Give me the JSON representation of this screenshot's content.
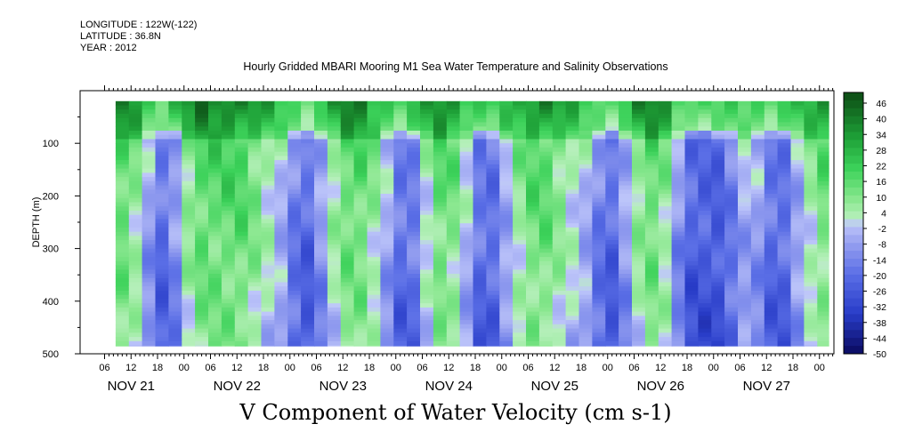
{
  "header": {
    "longitude": "LONGITUDE : 122W(-122)",
    "latitude": "LATITUDE : 36.8N",
    "year": "YEAR : 2012",
    "title": "Hourly Gridded MBARI Mooring M1 Sea Water Temperature and Salinity Observations"
  },
  "chart_data": {
    "type": "heatmap",
    "title": "Hourly Gridded MBARI Mooring M1 Sea Water Temperature and Salinity Observations",
    "xlabel": "",
    "ylabel": "DEPTH (m)",
    "bottom_title": "V Component of Water Velocity (cm s-1)",
    "x_hours_range": [
      0,
      174
    ],
    "ylim": [
      500,
      0
    ],
    "data_depth_range": [
      20,
      485
    ],
    "y_ticks": [
      "100",
      "200",
      "300",
      "400",
      "500"
    ],
    "y_tick_values": [
      100,
      200,
      300,
      400,
      500
    ],
    "hour_tick_labels": [
      "06",
      "12",
      "18",
      "00",
      "06",
      "12",
      "18",
      "00",
      "06",
      "12",
      "18",
      "00",
      "06",
      "12",
      "18",
      "00",
      "06",
      "12",
      "18",
      "00",
      "06",
      "12",
      "18",
      "00",
      "06",
      "12",
      "18",
      "00"
    ],
    "day_labels": [
      "NOV 21",
      "NOV 22",
      "NOV 23",
      "NOV 24",
      "NOV 25",
      "NOV 26",
      "NOV 27"
    ],
    "colorbar_labels": [
      "46",
      "40",
      "34",
      "28",
      "22",
      "16",
      "10",
      "4",
      "-2",
      "-8",
      "-14",
      "-20",
      "-26",
      "-32",
      "-38",
      "-44",
      "-50"
    ],
    "colorbar_levels": [
      -50,
      -47,
      -44,
      -41,
      -38,
      -35,
      -32,
      -29,
      -26,
      -23,
      -20,
      -17,
      -14,
      -11,
      -8,
      -5,
      -2,
      1,
      4,
      7,
      10,
      13,
      16,
      19,
      22,
      25,
      28,
      31,
      34,
      37,
      40,
      43,
      46,
      49
    ],
    "colors": {
      "neg_deep": "#0a0a5e",
      "neg_mid": "#3a5ad8",
      "neg_light": "#a8b0f5",
      "pos_light": "#9ef0a0",
      "pos_mid": "#33d24f",
      "pos_deep": "#0c4a14"
    },
    "blue_bands_hours": [
      12,
      44,
      67,
      85,
      113,
      131,
      138,
      151
    ],
    "green_bands_hours": [
      2,
      20,
      29,
      55,
      75,
      97,
      123,
      164
    ]
  }
}
